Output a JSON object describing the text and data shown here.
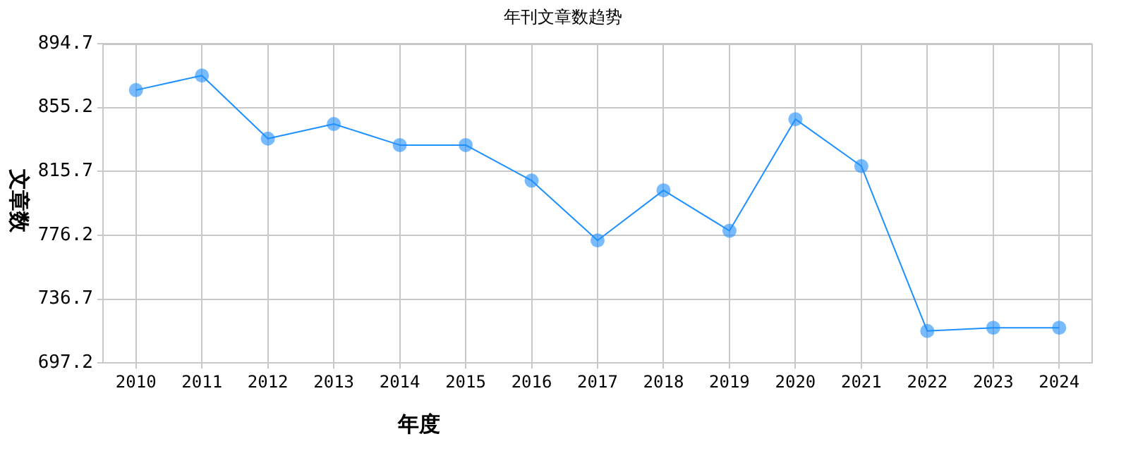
{
  "chart_data": {
    "type": "line",
    "title": "年刊文章数趋势",
    "xlabel": "年度",
    "ylabel": "文章数",
    "categories": [
      "2010",
      "2011",
      "2012",
      "2013",
      "2014",
      "2015",
      "2016",
      "2017",
      "2018",
      "2019",
      "2020",
      "2021",
      "2022",
      "2023",
      "2024"
    ],
    "series": [
      {
        "color": "#1e90ff",
        "values": [
          866,
          875,
          836,
          845,
          832,
          832,
          810,
          773,
          804,
          779,
          848,
          819,
          717,
          719,
          719
        ]
      }
    ],
    "ylim": [
      697.2,
      894.7
    ],
    "yticks": [
      697.2,
      736.7,
      776.2,
      815.7,
      855.2,
      894.7
    ],
    "grid": true,
    "marker": "circle",
    "legend": false
  }
}
